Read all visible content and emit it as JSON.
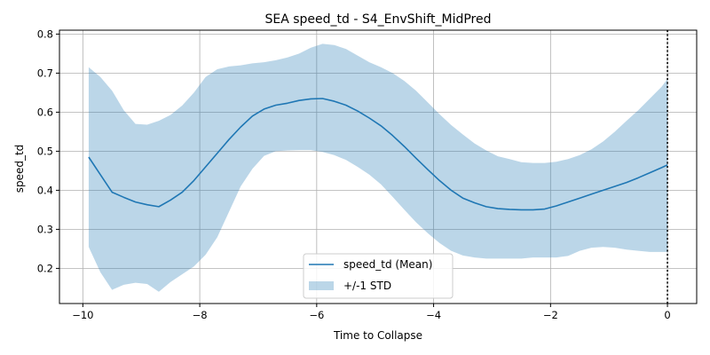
{
  "chart_data": {
    "type": "line",
    "title": "SEA speed_td - S4_EnvShift_MidPred",
    "xlabel": "Time to Collapse",
    "ylabel": "speed_td",
    "xlim": [
      -10.4,
      0.5
    ],
    "ylim": [
      0.11,
      0.81
    ],
    "xticks": [
      -10,
      -8,
      -6,
      -4,
      -2,
      0
    ],
    "xtick_labels": [
      "−10",
      "−8",
      "−6",
      "−4",
      "−2",
      "0"
    ],
    "yticks": [
      0.2,
      0.3,
      0.4,
      0.5,
      0.6,
      0.7,
      0.8
    ],
    "ytick_labels": [
      "0.2",
      "0.3",
      "0.4",
      "0.5",
      "0.6",
      "0.7",
      "0.8"
    ],
    "grid": true,
    "legend_position": "lower-center",
    "vline": {
      "x": 0,
      "style": "dotted",
      "color": "#000000"
    },
    "series": [
      {
        "name": "speed_td (Mean)",
        "kind": "line",
        "color": "#1f77b4",
        "x": [
          -9.9,
          -9.7,
          -9.5,
          -9.3,
          -9.1,
          -8.9,
          -8.7,
          -8.5,
          -8.3,
          -8.1,
          -7.9,
          -7.7,
          -7.5,
          -7.3,
          -7.1,
          -6.9,
          -6.7,
          -6.5,
          -6.3,
          -6.1,
          -5.9,
          -5.7,
          -5.5,
          -5.3,
          -5.1,
          -4.9,
          -4.7,
          -4.5,
          -4.3,
          -4.1,
          -3.9,
          -3.7,
          -3.5,
          -3.3,
          -3.1,
          -2.9,
          -2.7,
          -2.5,
          -2.3,
          -2.1,
          -1.9,
          -1.7,
          -1.5,
          -1.3,
          -1.1,
          -0.9,
          -0.7,
          -0.5,
          -0.3,
          -0.1,
          0.0
        ],
        "values": [
          0.485,
          0.44,
          0.395,
          0.382,
          0.37,
          0.363,
          0.358,
          0.375,
          0.395,
          0.425,
          0.46,
          0.495,
          0.53,
          0.562,
          0.59,
          0.608,
          0.618,
          0.623,
          0.63,
          0.634,
          0.635,
          0.628,
          0.618,
          0.603,
          0.585,
          0.565,
          0.54,
          0.512,
          0.482,
          0.453,
          0.425,
          0.4,
          0.38,
          0.368,
          0.358,
          0.353,
          0.351,
          0.35,
          0.35,
          0.352,
          0.36,
          0.37,
          0.38,
          0.39,
          0.4,
          0.41,
          0.42,
          0.432,
          0.445,
          0.458,
          0.465
        ]
      },
      {
        "name": "+/-1 STD",
        "kind": "band",
        "color": "#1f77b4",
        "opacity": 0.3,
        "x": [
          -9.9,
          -9.7,
          -9.5,
          -9.3,
          -9.1,
          -8.9,
          -8.7,
          -8.5,
          -8.3,
          -8.1,
          -7.9,
          -7.7,
          -7.5,
          -7.3,
          -7.1,
          -6.9,
          -6.7,
          -6.5,
          -6.3,
          -6.1,
          -5.9,
          -5.7,
          -5.5,
          -5.3,
          -5.1,
          -4.9,
          -4.7,
          -4.5,
          -4.3,
          -4.1,
          -3.9,
          -3.7,
          -3.5,
          -3.3,
          -3.1,
          -2.9,
          -2.7,
          -2.5,
          -2.3,
          -2.1,
          -1.9,
          -1.7,
          -1.5,
          -1.3,
          -1.1,
          -0.9,
          -0.7,
          -0.5,
          -0.3,
          -0.1,
          0.0
        ],
        "upper": [
          0.715,
          0.69,
          0.655,
          0.605,
          0.57,
          0.568,
          0.578,
          0.593,
          0.617,
          0.65,
          0.69,
          0.71,
          0.717,
          0.72,
          0.725,
          0.728,
          0.733,
          0.74,
          0.75,
          0.765,
          0.775,
          0.772,
          0.762,
          0.745,
          0.728,
          0.715,
          0.7,
          0.68,
          0.655,
          0.625,
          0.595,
          0.567,
          0.543,
          0.52,
          0.502,
          0.487,
          0.48,
          0.472,
          0.47,
          0.47,
          0.473,
          0.48,
          0.49,
          0.505,
          0.525,
          0.55,
          0.578,
          0.605,
          0.635,
          0.665,
          0.685
        ],
        "lower": [
          0.255,
          0.19,
          0.145,
          0.158,
          0.163,
          0.16,
          0.14,
          0.165,
          0.185,
          0.205,
          0.235,
          0.28,
          0.345,
          0.41,
          0.455,
          0.488,
          0.5,
          0.502,
          0.503,
          0.503,
          0.498,
          0.49,
          0.478,
          0.46,
          0.44,
          0.415,
          0.383,
          0.35,
          0.318,
          0.29,
          0.265,
          0.245,
          0.233,
          0.228,
          0.225,
          0.225,
          0.225,
          0.225,
          0.228,
          0.228,
          0.228,
          0.232,
          0.245,
          0.253,
          0.255,
          0.253,
          0.248,
          0.245,
          0.242,
          0.242,
          0.242
        ]
      }
    ]
  }
}
